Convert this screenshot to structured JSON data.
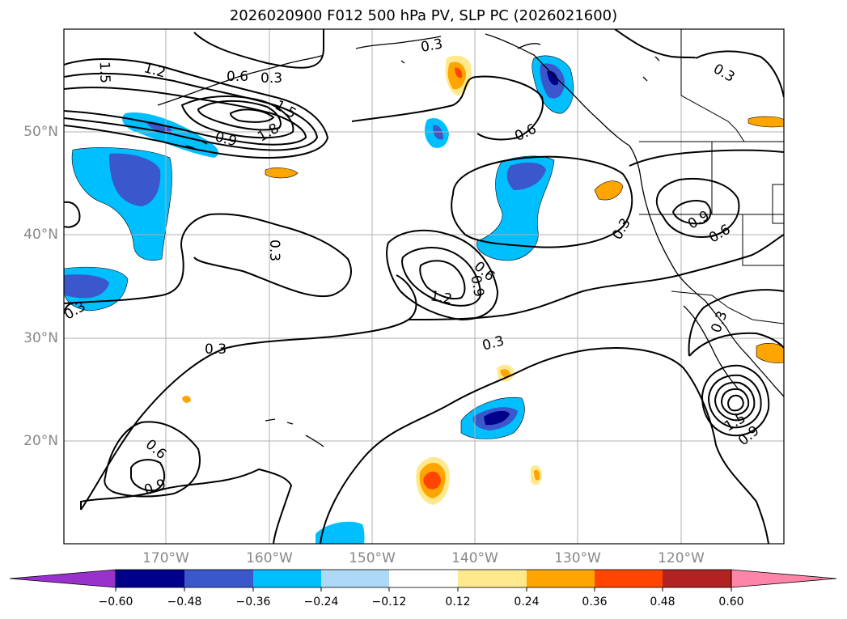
{
  "title": "2026020900 F012 500 hPa PV, SLP PC (2026021600)",
  "map": {
    "lat_ticks": [
      "50°N",
      "40°N",
      "30°N",
      "20°N"
    ],
    "lon_ticks": [
      "170°W",
      "160°W",
      "150°W",
      "140°W",
      "130°W",
      "120°W"
    ],
    "contour_labels": {
      "l_1_5_a": "1.5",
      "l_1_2_a": "1.2",
      "l_0_6_a": "0.6",
      "l_0_3_a": "0.3",
      "l_1_5_b": "1.5",
      "l_1_8": "1.8",
      "l_0_9_a": "0.9",
      "l_0_3_top": "0.3",
      "l_0_6_b": "0.6",
      "l_0_3_ne": "0.3",
      "l_0_3_mid": "0.3",
      "l_0_9_b": "0.9",
      "l_0_6_c": "0.6",
      "l_1_2_b": "1.2",
      "l_0_3_d": "0.3",
      "l_0_3_e": "0.3",
      "l_0_3_f": "0.3",
      "l_0_3_west": "0.3",
      "l_0_9_c": "0.9",
      "l_0_6_d": "0.6",
      "l_0_3_g": "0.3",
      "l_0_6_e": "0.6",
      "l_0_9_d": "0.9",
      "l_1_5_c": "1.5",
      "l_0_9_e": "0.9"
    }
  },
  "colorbar": {
    "tick_labels": [
      "−0.60",
      "−0.48",
      "−0.36",
      "−0.24",
      "−0.12",
      "0.12",
      "0.24",
      "0.36",
      "0.48",
      "0.60"
    ],
    "colors": [
      "#9932cc",
      "#00008b",
      "#3a57cc",
      "#00bfff",
      "#add8f6",
      "#ffffff",
      "#ffe98c",
      "#ffa500",
      "#ff4500",
      "#b22222",
      "#ff85a8"
    ]
  }
}
